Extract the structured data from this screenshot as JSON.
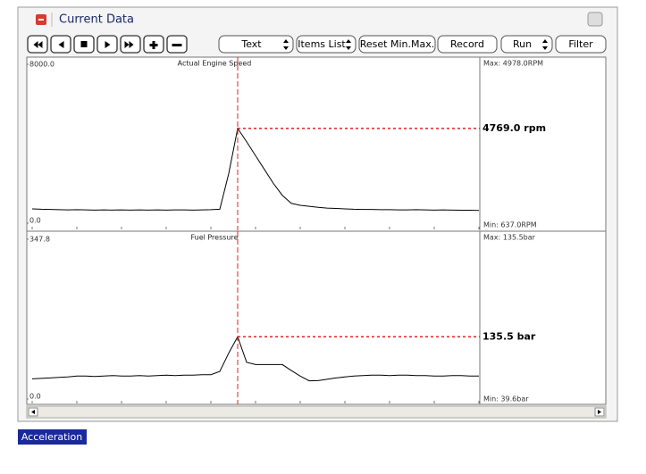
{
  "window": {
    "title": "Current Data"
  },
  "toolbar": {
    "buttons": [
      "Text",
      "Items List",
      "Reset Min.Max.",
      "Record",
      "Run",
      "Filter"
    ]
  },
  "status": {
    "label": "Acceleration"
  },
  "chart_data": [
    {
      "type": "line",
      "title": "Actual Engine Speed",
      "color": "#000000",
      "ylim": [
        0,
        8000
      ],
      "yticks": [
        {
          "value": 0,
          "label": "0.0"
        },
        {
          "value": 8000,
          "label": "8000.0"
        }
      ],
      "max_label": "Max: 4978.0RPM",
      "min_label": "Min: 637.0RPM",
      "cursor": 23,
      "readout": {
        "value": 4769,
        "label": "4769.0 rpm"
      },
      "values": [
        720,
        700,
        690,
        680,
        670,
        680,
        670,
        660,
        670,
        660,
        670,
        660,
        670,
        660,
        670,
        660,
        670,
        670,
        660,
        670,
        680,
        700,
        2500,
        4769,
        4100,
        3400,
        2700,
        2000,
        1400,
        1000,
        900,
        850,
        800,
        760,
        740,
        720,
        700,
        690,
        690,
        680,
        680,
        670,
        670,
        680,
        670,
        660,
        670,
        660,
        650,
        650,
        640
      ]
    },
    {
      "type": "line",
      "title": "Fuel Pressure",
      "color": "#000000",
      "ylim": [
        0,
        347.8
      ],
      "yticks": [
        {
          "value": 0,
          "label": "0.0"
        },
        {
          "value": 347.8,
          "label": "347.8"
        }
      ],
      "max_label": "Max: 135.5bar",
      "min_label": "Min:  39.6bar",
      "cursor": 23,
      "readout": {
        "value": 135.5,
        "label": "135.5 bar"
      },
      "values": [
        44,
        45,
        46,
        47,
        48,
        50,
        50,
        49,
        50,
        51,
        50,
        50,
        51,
        50,
        51,
        52,
        51,
        52,
        52,
        53,
        53,
        60,
        100,
        135.5,
        80,
        75,
        75,
        75,
        75,
        62,
        50,
        39.6,
        40,
        43,
        46,
        48,
        50,
        51,
        52,
        52,
        51,
        52,
        52,
        51,
        51,
        50,
        50,
        51,
        51,
        50,
        50
      ]
    }
  ]
}
